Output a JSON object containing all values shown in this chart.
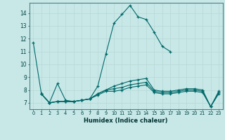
{
  "xlabel": "Humidex (Indice chaleur)",
  "ylabel": "",
  "background_color": "#c8e8e8",
  "grid_color": "#b8d8d8",
  "line_color": "#006868",
  "xlim": [
    -0.5,
    23.5
  ],
  "ylim": [
    6.5,
    14.8
  ],
  "yticks": [
    7,
    8,
    9,
    10,
    11,
    12,
    13,
    14
  ],
  "xticks": [
    0,
    1,
    2,
    3,
    4,
    5,
    6,
    7,
    8,
    9,
    10,
    11,
    12,
    13,
    14,
    15,
    16,
    17,
    18,
    19,
    20,
    21,
    22,
    23
  ],
  "series": [
    {
      "x": [
        0,
        1,
        2,
        3,
        4,
        5,
        6,
        7,
        8,
        9,
        10,
        11,
        12,
        13,
        14,
        15,
        16,
        17
      ],
      "y": [
        11.7,
        7.7,
        7.0,
        8.5,
        7.2,
        7.1,
        7.2,
        7.3,
        8.3,
        10.8,
        13.2,
        13.9,
        14.6,
        13.7,
        13.5,
        12.5,
        11.4,
        11.0
      ]
    },
    {
      "x": [
        1,
        2,
        3,
        4,
        5,
        6,
        7,
        8,
        9,
        10,
        11,
        12,
        13,
        14,
        15,
        16,
        17,
        18,
        19,
        20,
        21,
        22,
        23
      ],
      "y": [
        7.7,
        7.0,
        7.1,
        7.1,
        7.1,
        7.2,
        7.3,
        7.7,
        8.0,
        8.3,
        8.5,
        8.7,
        8.8,
        8.9,
        8.0,
        7.9,
        7.9,
        8.0,
        8.1,
        8.1,
        8.0,
        6.7,
        7.9
      ]
    },
    {
      "x": [
        1,
        2,
        3,
        4,
        5,
        6,
        7,
        8,
        9,
        10,
        11,
        12,
        13,
        14,
        15,
        16,
        17,
        18,
        19,
        20,
        21,
        22,
        23
      ],
      "y": [
        7.7,
        7.0,
        7.1,
        7.1,
        7.1,
        7.2,
        7.3,
        7.7,
        8.0,
        8.1,
        8.2,
        8.4,
        8.5,
        8.6,
        7.9,
        7.8,
        7.8,
        7.9,
        8.0,
        8.0,
        7.9,
        6.7,
        7.8
      ]
    },
    {
      "x": [
        1,
        2,
        3,
        4,
        5,
        6,
        7,
        8,
        9,
        10,
        11,
        12,
        13,
        14,
        15,
        16,
        17,
        18,
        19,
        20,
        21,
        22,
        23
      ],
      "y": [
        7.7,
        7.0,
        7.1,
        7.1,
        7.1,
        7.2,
        7.3,
        7.6,
        7.9,
        7.9,
        8.0,
        8.2,
        8.3,
        8.4,
        7.8,
        7.7,
        7.7,
        7.8,
        7.9,
        7.9,
        7.8,
        6.7,
        7.7
      ]
    }
  ]
}
